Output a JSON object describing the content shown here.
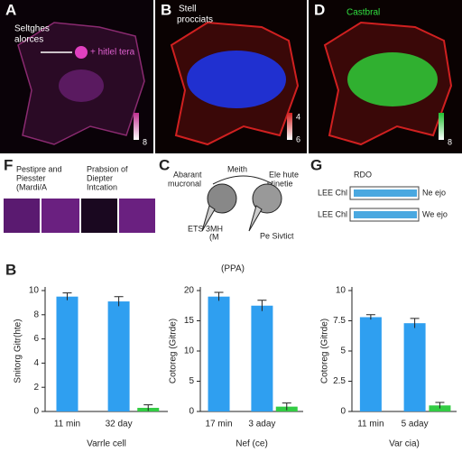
{
  "panels": {
    "a": {
      "label": "A",
      "title": [
        "Seltghes",
        "alorces"
      ],
      "annotation": "+ hitlel tera",
      "scale": "8"
    },
    "b": {
      "label": "B",
      "title": [
        "Stell",
        "procciats"
      ],
      "scale_top": "4",
      "scale_bottom": "6"
    },
    "d": {
      "label": "D",
      "title": "Castbral",
      "scale": "8"
    },
    "f": {
      "label": "F",
      "left": [
        "Pestipre and",
        "Piesster",
        "(Mardi/A"
      ],
      "right": [
        "Prabsion of",
        "Diepter",
        "Intcation"
      ]
    },
    "c": {
      "label": "C",
      "left": [
        "Abarant",
        "mucronal"
      ],
      "top": "Meith",
      "right": [
        "Ele hute",
        "stinetie"
      ],
      "bottom_left": [
        "ETS 3MH",
        "(M"
      ],
      "bottom_right": "Pe Sivtict"
    },
    "g": {
      "label": "G",
      "top": "RDO",
      "rows": [
        {
          "label": "LEE Chl",
          "tag": "Ne ejo"
        },
        {
          "label": "LEE Chl",
          "tag": "We ejo"
        }
      ]
    },
    "b2": {
      "label": "B",
      "title": "(PPA)"
    }
  },
  "chart_data": [
    {
      "type": "bar",
      "ylabel": "Snitorg Gitr(hte)",
      "xlabel": "Varrle cell",
      "categories": [
        "11 min",
        "32 day",
        null
      ],
      "ylim": [
        0,
        10
      ],
      "yticks": [
        0,
        2,
        4,
        6,
        8,
        10
      ],
      "series": [
        {
          "color": "#2f9ff0",
          "values": [
            9.5,
            9.1,
            null
          ],
          "errors": [
            0.3,
            0.4,
            null
          ]
        },
        {
          "color": "#33cc44",
          "values": [
            null,
            null,
            0.3
          ],
          "errors": [
            null,
            null,
            0.25
          ]
        }
      ]
    },
    {
      "type": "bar",
      "ylabel": "Cotoreg (Gitrde)",
      "xlabel": "Nef (ce)",
      "categories": [
        "17 min",
        "3 aday",
        null
      ],
      "ylim": [
        0,
        20
      ],
      "yticks": [
        0,
        5,
        10,
        15,
        20
      ],
      "series": [
        {
          "color": "#2f9ff0",
          "values": [
            19,
            17.5,
            null
          ],
          "errors": [
            0.7,
            0.9,
            null
          ]
        },
        {
          "color": "#33cc44",
          "values": [
            null,
            null,
            0.8
          ],
          "errors": [
            null,
            null,
            0.6
          ]
        }
      ]
    },
    {
      "type": "bar",
      "ylabel": "Cotoreg (Gitrde)",
      "xlabel": "Var cia)",
      "categories": [
        "11 min",
        "5 aday",
        null
      ],
      "ylim": [
        0,
        10
      ],
      "yticks": [
        0,
        2.5,
        5,
        7.5,
        10
      ],
      "series": [
        {
          "color": "#2f9ff0",
          "values": [
            7.8,
            7.3,
            null
          ],
          "errors": [
            0.2,
            0.4,
            null
          ]
        },
        {
          "color": "#33cc44",
          "values": [
            null,
            null,
            0.5
          ],
          "errors": [
            null,
            null,
            0.25
          ]
        }
      ]
    }
  ]
}
